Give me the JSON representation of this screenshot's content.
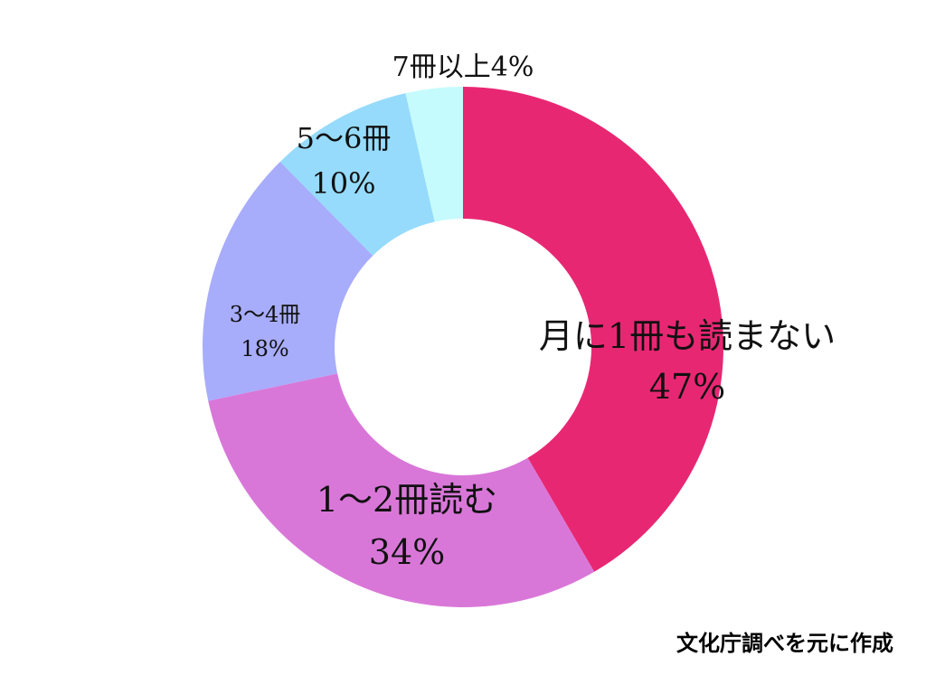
{
  "chart_data": {
    "type": "pie",
    "variant": "donut",
    "categories": [
      "月に1冊も読まない",
      "1〜2冊読む",
      "3〜4冊",
      "5〜6冊",
      "7冊以上"
    ],
    "values": [
      47,
      34,
      18,
      10,
      4
    ],
    "value_labels": [
      "47%",
      "34%",
      "18%",
      "10%",
      "4%"
    ],
    "colors": [
      "#e82773",
      "#d977d9",
      "#a7acfb",
      "#96dbfc",
      "#c6fbfd"
    ],
    "start": "12 o'clock",
    "direction": "clockwise",
    "source_note": "文化庁調べを元に作成"
  }
}
